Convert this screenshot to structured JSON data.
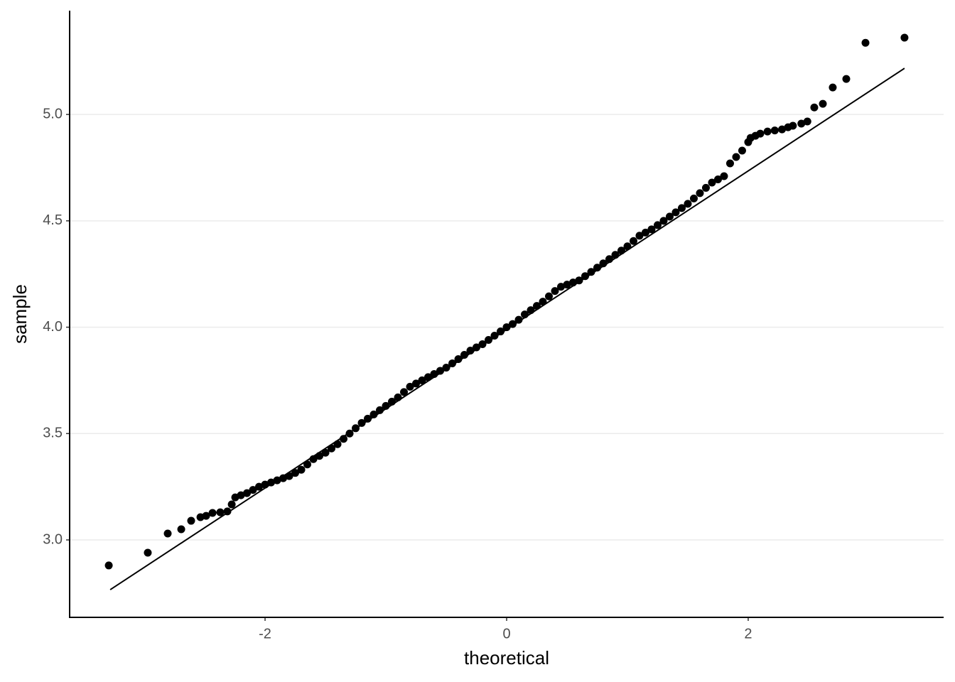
{
  "chart_data": {
    "type": "scatter",
    "x_label": "theoretical",
    "y_label": "sample",
    "color": "#000000",
    "grid": true,
    "xlim": [
      -3.618,
      3.618
    ],
    "ylim": [
      2.636,
      5.488
    ],
    "xticks": [
      -2,
      0,
      2
    ],
    "yticks": [
      {
        "value": 3,
        "label": "3.0"
      },
      {
        "value": 3.5,
        "label": "3.5"
      },
      {
        "value": 4,
        "label": "4.0"
      },
      {
        "value": 4.5,
        "label": "4.5"
      },
      {
        "value": 5,
        "label": "5.0"
      }
    ],
    "x": [
      -3.294,
      -2.971,
      -2.806,
      -2.694,
      -2.612,
      -2.535,
      -2.488,
      -2.435,
      -2.371,
      -2.312,
      -2.276,
      -2.247,
      -2.2,
      -2.15,
      -2.1,
      -2.05,
      -2.0,
      -1.95,
      -1.9,
      -1.85,
      -1.8,
      -1.75,
      -1.7,
      -1.65,
      -1.6,
      -1.55,
      -1.5,
      -1.45,
      -1.4,
      -1.35,
      -1.3,
      -1.25,
      -1.2,
      -1.15,
      -1.1,
      -1.05,
      -1.0,
      -0.95,
      -0.9,
      -0.85,
      -0.8,
      -0.75,
      -0.7,
      -0.65,
      -0.6,
      -0.55,
      -0.5,
      -0.45,
      -0.4,
      -0.35,
      -0.3,
      -0.25,
      -0.2,
      -0.15,
      -0.1,
      -0.05,
      0,
      0.05,
      0.1,
      0.15,
      0.2,
      0.25,
      0.3,
      0.35,
      0.4,
      0.45,
      0.5,
      0.55,
      0.6,
      0.65,
      0.7,
      0.75,
      0.8,
      0.85,
      0.9,
      0.95,
      1.0,
      1.05,
      1.1,
      1.15,
      1.2,
      1.25,
      1.3,
      1.35,
      1.4,
      1.45,
      1.5,
      1.55,
      1.6,
      1.65,
      1.7,
      1.75,
      1.8,
      1.85,
      1.9,
      1.95,
      2.0,
      2.02,
      2.06,
      2.1,
      2.16,
      2.22,
      2.28,
      2.33,
      2.37,
      2.44,
      2.49,
      2.547,
      2.618,
      2.7,
      2.812,
      2.971,
      3.294
    ],
    "values": [
      2.88,
      2.94,
      3.03,
      3.05,
      3.09,
      3.107,
      3.113,
      3.127,
      3.13,
      3.134,
      3.167,
      3.2,
      3.21,
      3.22,
      3.235,
      3.25,
      3.26,
      3.27,
      3.28,
      3.29,
      3.3,
      3.315,
      3.33,
      3.355,
      3.38,
      3.395,
      3.41,
      3.43,
      3.45,
      3.475,
      3.5,
      3.525,
      3.55,
      3.57,
      3.59,
      3.61,
      3.63,
      3.65,
      3.67,
      3.695,
      3.72,
      3.735,
      3.75,
      3.765,
      3.78,
      3.795,
      3.81,
      3.83,
      3.85,
      3.87,
      3.89,
      3.905,
      3.92,
      3.94,
      3.96,
      3.98,
      4.0,
      4.015,
      4.035,
      4.06,
      4.08,
      4.1,
      4.12,
      4.145,
      4.17,
      4.19,
      4.2,
      4.21,
      4.22,
      4.24,
      4.26,
      4.28,
      4.3,
      4.32,
      4.34,
      4.36,
      4.38,
      4.405,
      4.43,
      4.445,
      4.46,
      4.48,
      4.5,
      4.52,
      4.54,
      4.56,
      4.58,
      4.605,
      4.63,
      4.655,
      4.68,
      4.695,
      4.71,
      4.77,
      4.8,
      4.83,
      4.87,
      4.89,
      4.9,
      4.91,
      4.92,
      4.925,
      4.93,
      4.94,
      4.947,
      4.957,
      4.967,
      5.033,
      5.05,
      5.127,
      5.167,
      5.337,
      5.361
    ],
    "reference_line": {
      "x": [
        -3.282,
        3.294
      ],
      "y": [
        2.766,
        5.217
      ]
    }
  }
}
